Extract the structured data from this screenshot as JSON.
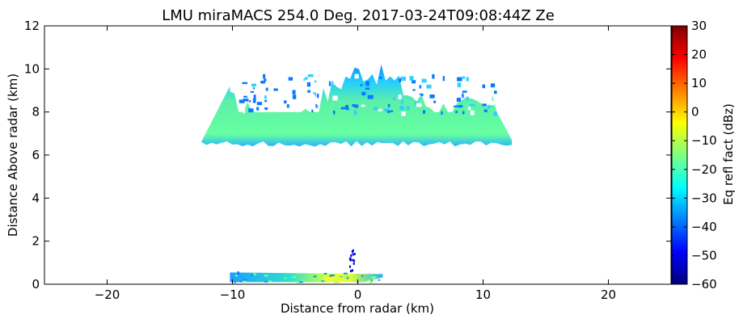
{
  "chart_data": {
    "type": "heatmap",
    "title": "LMU miraMACS 254.0 Deg. 2017-03-24T09:08:44Z  Ze",
    "xlabel": "Distance from radar (km)",
    "ylabel": "Distance Above radar  (km)",
    "xlim": [
      -25,
      25
    ],
    "ylim": [
      0,
      12
    ],
    "x_ticks": [
      -20,
      -10,
      0,
      10,
      20
    ],
    "y_ticks": [
      0,
      2,
      4,
      6,
      8,
      10,
      12
    ],
    "colorbar": {
      "label": "Eq refl fact (dBz)",
      "range": [
        -60,
        30
      ],
      "ticks": [
        30,
        20,
        10,
        0,
        -10,
        -20,
        -30,
        -40,
        -50,
        -60
      ],
      "colormap": "jet"
    },
    "grid": false,
    "regions": [
      {
        "name": "upper cloud layer",
        "x_range_km": [
          -12.5,
          12.3
        ],
        "height_km": [
          6.4,
          10.2
        ],
        "typical_dbz": -20,
        "top_edge_dbz": -33
      },
      {
        "name": "low-level echo",
        "x_range_km": [
          -10.2,
          2.0
        ],
        "height_km": [
          0.1,
          0.55
        ],
        "typical_dbz": -28,
        "max_dbz": -6,
        "max_at_x_km": -1.8
      },
      {
        "name": "narrow vertical echo",
        "x_range_km": [
          -0.7,
          -0.3
        ],
        "height_km": [
          0.6,
          1.7
        ],
        "typical_dbz": -45
      }
    ]
  }
}
